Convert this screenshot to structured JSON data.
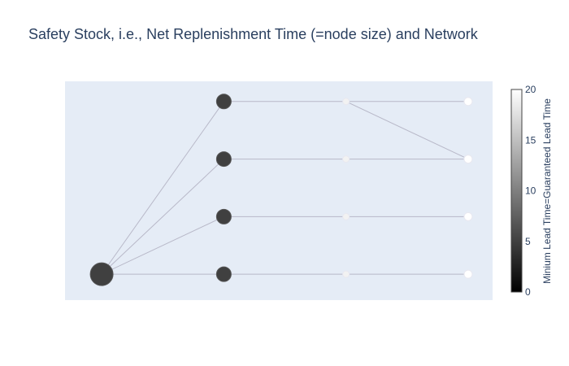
{
  "title": "Safety Stock, i.e., Net Replenishment Time (=node size) and Network",
  "colorbar": {
    "title": "Minium Lead Time=Guaranteed Lead Time",
    "ticks": [
      0,
      5,
      10,
      15,
      20
    ],
    "range": [
      0,
      20
    ],
    "colorscale": [
      "#000000",
      "#ffffff"
    ]
  },
  "colors": {
    "plot_bg": "#e5ecf6",
    "edge": "#b8b8c8",
    "text": "#2a3f5f"
  },
  "chart_data": {
    "type": "scatter",
    "title": "Safety Stock, i.e., Net Replenishment Time (=node size) and Network",
    "xlim": [
      -0.3,
      3.2
    ],
    "ylim": [
      -0.45,
      3.35
    ],
    "grid": false,
    "nodes": [
      {
        "id": "n0",
        "x": 0,
        "y": 0,
        "size": 28,
        "lead_time": 5
      },
      {
        "id": "n1",
        "x": 1,
        "y": 0,
        "size": 18,
        "lead_time": 5
      },
      {
        "id": "n2",
        "x": 1,
        "y": 1,
        "size": 18,
        "lead_time": 5
      },
      {
        "id": "n3",
        "x": 1,
        "y": 2,
        "size": 18,
        "lead_time": 5
      },
      {
        "id": "n4",
        "x": 1,
        "y": 3,
        "size": 18,
        "lead_time": 5
      },
      {
        "id": "n5",
        "x": 2,
        "y": 0,
        "size": 8,
        "lead_time": 19
      },
      {
        "id": "n6",
        "x": 2,
        "y": 1,
        "size": 8,
        "lead_time": 19
      },
      {
        "id": "n7",
        "x": 2,
        "y": 2,
        "size": 8,
        "lead_time": 19
      },
      {
        "id": "n8",
        "x": 2,
        "y": 3,
        "size": 8,
        "lead_time": 19
      },
      {
        "id": "n9",
        "x": 3,
        "y": 0,
        "size": 10,
        "lead_time": 20
      },
      {
        "id": "n10",
        "x": 3,
        "y": 1,
        "size": 10,
        "lead_time": 20
      },
      {
        "id": "n11",
        "x": 3,
        "y": 2,
        "size": 10,
        "lead_time": 20
      },
      {
        "id": "n12",
        "x": 3,
        "y": 3,
        "size": 10,
        "lead_time": 20
      }
    ],
    "edges": [
      [
        "n0",
        "n1"
      ],
      [
        "n0",
        "n2"
      ],
      [
        "n0",
        "n3"
      ],
      [
        "n0",
        "n4"
      ],
      [
        "n1",
        "n5"
      ],
      [
        "n2",
        "n6"
      ],
      [
        "n3",
        "n7"
      ],
      [
        "n4",
        "n8"
      ],
      [
        "n5",
        "n9"
      ],
      [
        "n6",
        "n10"
      ],
      [
        "n7",
        "n11"
      ],
      [
        "n8",
        "n12"
      ],
      [
        "n8",
        "n11"
      ]
    ]
  }
}
